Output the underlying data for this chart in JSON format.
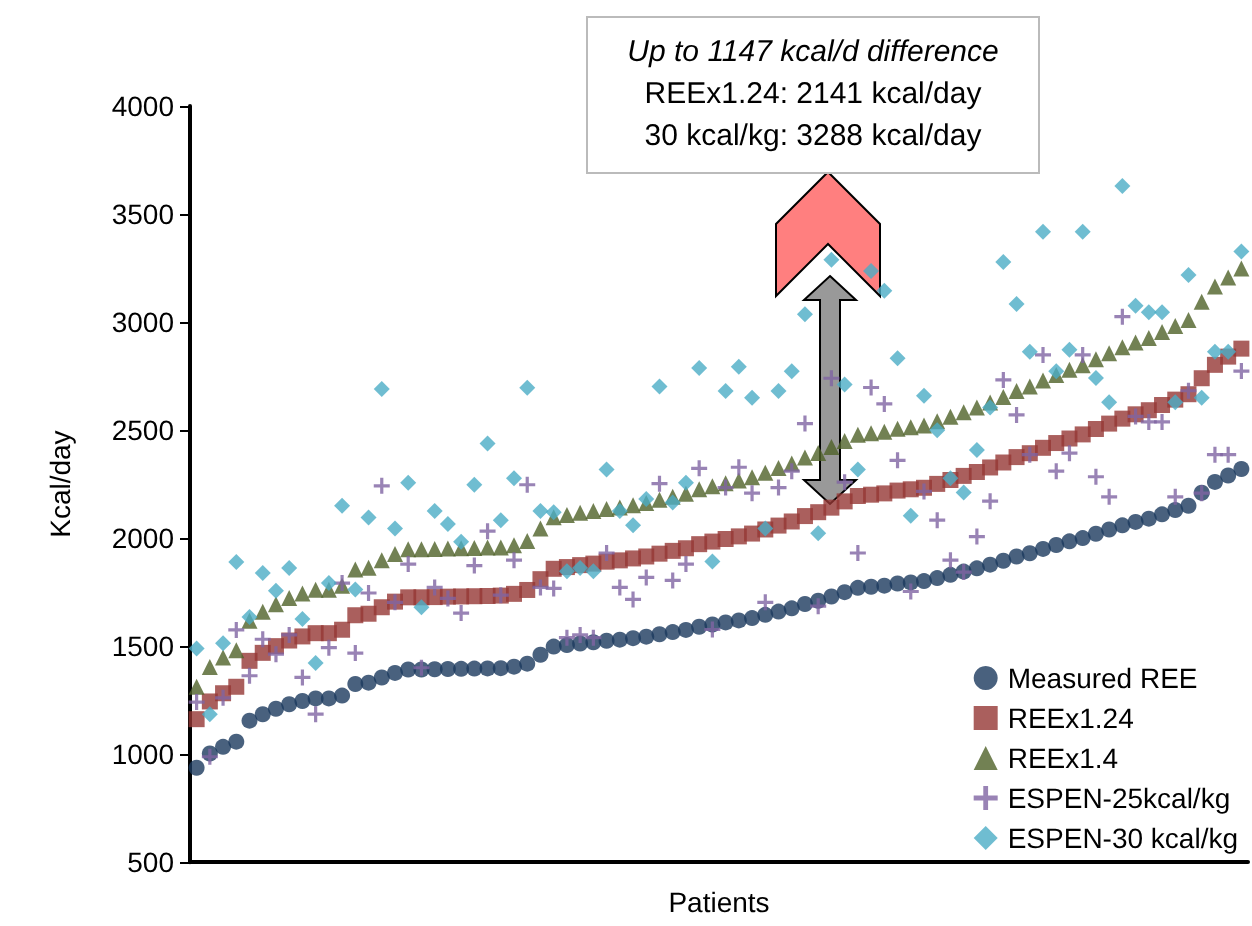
{
  "chart_data": {
    "type": "scatter",
    "xlabel": "Patients",
    "ylabel": "Kcal/day",
    "annotations": [
      "Up to 1147 kcal/d difference",
      "REEx1.24: 2141 kcal/day",
      "30 kcal/kg: 3288 kcal/day"
    ],
    "categories": [
      null,
      null,
      null,
      null,
      null,
      null,
      null,
      null,
      null,
      null,
      null,
      null,
      null,
      null,
      null,
      null,
      null,
      null,
      null,
      null,
      null,
      null,
      null,
      null,
      null,
      null,
      null,
      null,
      null,
      null,
      null,
      null,
      null,
      null,
      null,
      null,
      null,
      null,
      null,
      null,
      null,
      null,
      null,
      null,
      null,
      null,
      null,
      null,
      null,
      null,
      null,
      null,
      null,
      null,
      null,
      null,
      null,
      null,
      null,
      null,
      null,
      null,
      null,
      null,
      null,
      null,
      null,
      null,
      null,
      null,
      null,
      null,
      null,
      null,
      null,
      null,
      null,
      null,
      null,
      null
    ],
    "series": [
      {
        "name": "Measured REE",
        "color": "#1b3a5e",
        "marker": "circle",
        "values": [
          937,
          1003,
          1034,
          1058,
          1155,
          1185,
          1210,
          1231,
          1246,
          1258,
          1258,
          1271,
          1325,
          1331,
          1355,
          1376,
          1392,
          1392,
          1393,
          1394,
          1395,
          1396,
          1397,
          1398,
          1405,
          1419,
          1460,
          1498,
          1505,
          1512,
          1518,
          1525,
          1530,
          1537,
          1544,
          1555,
          1565,
          1575,
          1590,
          1600,
          1610,
          1619,
          1630,
          1645,
          1660,
          1675,
          1695,
          1710,
          1730,
          1750,
          1770,
          1775,
          1780,
          1790,
          1795,
          1801,
          1815,
          1830,
          1845,
          1860,
          1877,
          1895,
          1915,
          1930,
          1950,
          1968,
          1985,
          2000,
          2020,
          2040,
          2059,
          2075,
          2090,
          2110,
          2130,
          2150,
          2210,
          2260,
          2290,
          2320
        ]
      },
      {
        "name": "REEx1.24",
        "color": "#953735",
        "marker": "square",
        "values": [
          1162,
          1244,
          1282,
          1312,
          1432,
          1469,
          1500,
          1526,
          1545,
          1560,
          1560,
          1576,
          1643,
          1650,
          1680,
          1706,
          1726,
          1726,
          1727,
          1729,
          1730,
          1731,
          1732,
          1734,
          1742,
          1760,
          1810,
          1858,
          1866,
          1875,
          1882,
          1891,
          1897,
          1906,
          1915,
          1928,
          1941,
          1953,
          1972,
          1984,
          1996,
          2008,
          2021,
          2040,
          2058,
          2077,
          2102,
          2120,
          2141,
          2170,
          2195,
          2201,
          2207,
          2220,
          2226,
          2233,
          2251,
          2269,
          2288,
          2306,
          2327,
          2350,
          2375,
          2393,
          2418,
          2440,
          2461,
          2480,
          2505,
          2530,
          2553,
          2573,
          2592,
          2616,
          2641,
          2666,
          2740,
          2802,
          2840,
          2877
        ]
      },
      {
        "name": "REEx1.4",
        "color": "#4f6228",
        "marker": "triangle",
        "values": [
          1312,
          1404,
          1448,
          1481,
          1617,
          1659,
          1694,
          1723,
          1744,
          1761,
          1761,
          1779,
          1855,
          1863,
          1897,
          1926,
          1949,
          1949,
          1950,
          1952,
          1953,
          1954,
          1956,
          1957,
          1967,
          1987,
          2044,
          2097,
          2107,
          2117,
          2125,
          2135,
          2142,
          2152,
          2162,
          2177,
          2191,
          2205,
          2226,
          2240,
          2254,
          2267,
          2282,
          2303,
          2324,
          2345,
          2373,
          2394,
          2422,
          2450,
          2478,
          2485,
          2492,
          2506,
          2513,
          2521,
          2541,
          2562,
          2583,
          2604,
          2628,
          2653,
          2681,
          2702,
          2730,
          2755,
          2779,
          2800,
          2828,
          2856,
          2883,
          2905,
          2926,
          2954,
          2982,
          3010,
          3094,
          3164,
          3206,
          3248
        ]
      },
      {
        "name": "ESPEN-25kcal/kg",
        "color": "#8064a2",
        "marker": "cross",
        "values": [
          1241,
          988,
          1261,
          1575,
          1363,
          1532,
          1463,
          1552,
          1355,
          1185,
          1493,
          1792,
          1468,
          1746,
          2242,
          1703,
          1880,
          1400,
          1772,
          1721,
          1653,
          1873,
          2032,
          1736,
          1898,
          2247,
          1772,
          1767,
          1539,
          1552,
          1539,
          1931,
          1772,
          1716,
          1818,
          2252,
          1804,
          1880,
          2323,
          1577,
          2234,
          2328,
          2208,
          1703,
          2234,
          2310,
          2530,
          1685,
          2740,
          2259,
          1931,
          2697,
          2621,
          2360,
          1753,
          2216,
          2083,
          1898,
          1843,
          2007,
          2171,
          2732,
          2570,
          2386,
          2848,
          2310,
          2393,
          2848,
          2284,
          2191,
          3025,
          2563,
          2538,
          2538,
          2191,
          2682,
          2208,
          2386,
          2386,
          2773
        ]
      },
      {
        "name": "ESPEN-30 kcal/kg",
        "color": "#4bacc6",
        "marker": "diamond",
        "values": [
          1489,
          1185,
          1513,
          1890,
          1635,
          1838,
          1756,
          1862,
          1626,
          1422,
          1792,
          2150,
          1762,
          2095,
          2690,
          2044,
          2256,
          1680,
          2126,
          2065,
          1983,
          2247,
          2438,
          2083,
          2277,
          2696,
          2126,
          2120,
          1847,
          1862,
          1847,
          2317,
          2126,
          2059,
          2181,
          2702,
          2165,
          2256,
          2787,
          1892,
          2681,
          2793,
          2650,
          2044,
          2681,
          2772,
          3036,
          2022,
          3288,
          2711,
          2317,
          3236,
          3145,
          2832,
          2104,
          2659,
          2499,
          2277,
          2211,
          2408,
          2605,
          3278,
          3084,
          2863,
          3418,
          2772,
          2872,
          3418,
          2741,
          2629,
          3630,
          3075,
          3045,
          3045,
          2629,
          3218,
          2650,
          2863,
          2863,
          3327
        ]
      }
    ],
    "ylim": [
      500,
      4000
    ],
    "yticks": [
      500,
      1000,
      1500,
      2000,
      2500,
      3000,
      3500,
      4000
    ],
    "grid": false,
    "legend": "bottom right"
  }
}
